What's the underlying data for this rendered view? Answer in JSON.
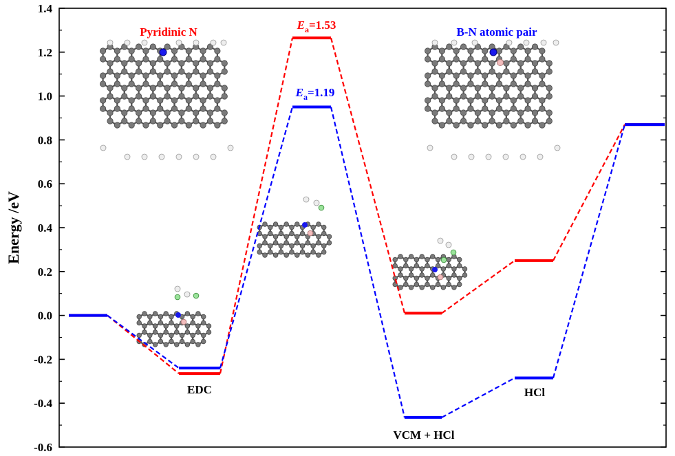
{
  "chart_data": {
    "type": "line",
    "title": "",
    "xlabel": "",
    "ylabel": "Energy /eV",
    "ylim": [
      -0.6,
      1.4
    ],
    "yticks": [
      "1.4",
      "1.2",
      "1.0",
      "0.8",
      "0.6",
      "0.4",
      "0.2",
      "0.0",
      "-0.2",
      "-0.4",
      "-0.6"
    ],
    "ytick_values": [
      1.4,
      1.2,
      1.0,
      0.8,
      0.6,
      0.4,
      0.2,
      0.0,
      -0.2,
      -0.4,
      -0.6
    ],
    "grid": false,
    "stages": [
      "",
      "EDC",
      "",
      "VCM + HCl",
      "HCl",
      ""
    ],
    "series": [
      {
        "name": "Pyridinic N",
        "color": "#ff0000",
        "values": [
          0.0,
          -0.265,
          1.265,
          0.01,
          0.25,
          0.87
        ]
      },
      {
        "name": "B-N atomic pair",
        "color": "#0000ff",
        "values": [
          0.0,
          -0.24,
          0.95,
          -0.465,
          -0.285,
          0.87
        ]
      }
    ],
    "annotations": {
      "ea_red": {
        "symbol": "E",
        "subscript": "a",
        "value": "=1.53",
        "color": "#ff0000"
      },
      "ea_blue": {
        "symbol": "E",
        "subscript": "a",
        "value": "=1.19",
        "color": "#0000ff"
      },
      "label_edc": "EDC",
      "label_vcm": "VCM + HCl",
      "label_hcl": "HCl"
    }
  }
}
